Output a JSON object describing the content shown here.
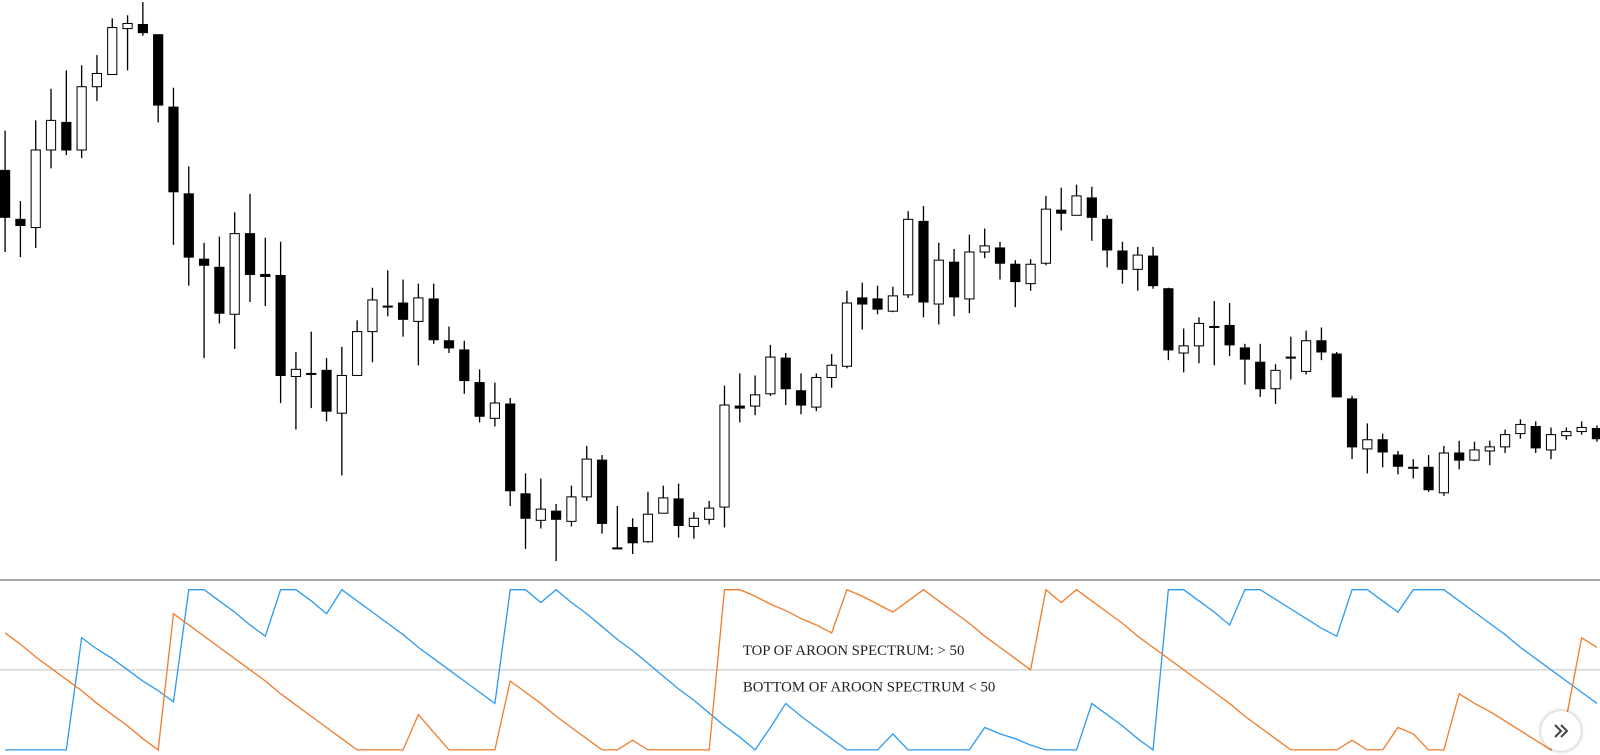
{
  "chart_data": [
    {
      "type": "candlestick",
      "up_color": "#ffffff",
      "down_color": "#000000",
      "ylim": [
        2,
        570
      ],
      "open": [
        403,
        355,
        347,
        423,
        450,
        423,
        485,
        497,
        542,
        546,
        536,
        465,
        380,
        316,
        308,
        262,
        341,
        301,
        300,
        201,
        204,
        207,
        165,
        202,
        245,
        270,
        273,
        255,
        277,
        236,
        227,
        195,
        160,
        174,
        86,
        60,
        69,
        59,
        83,
        119,
        33,
        53,
        39,
        67,
        81,
        54,
        61,
        73,
        172,
        172,
        184,
        219,
        187,
        171,
        200,
        211,
        278,
        277,
        265,
        281,
        353,
        272,
        313,
        277,
        323,
        327,
        311,
        292,
        312,
        364,
        359,
        376,
        355,
        324,
        306,
        319,
        287,
        224,
        231,
        250,
        251,
        229,
        215,
        189,
        220,
        206,
        236,
        223,
        179,
        130,
        139,
        124,
        112,
        112,
        87,
        126,
        119,
        128,
        132,
        145,
        152,
        129,
        143,
        147,
        150
      ],
      "high": [
        442,
        373,
        452,
        483,
        501,
        506,
        516,
        552,
        555,
        568,
        536,
        484,
        407,
        332,
        338,
        362,
        380,
        337,
        333,
        225,
        245,
        219,
        230,
        256,
        288,
        305,
        296,
        292,
        292,
        250,
        236,
        208,
        195,
        180,
        106,
        101,
        76,
        94,
        133,
        124,
        74,
        62,
        88,
        94,
        96,
        68,
        79,
        192,
        204,
        202,
        232,
        224,
        204,
        204,
        223,
        285,
        293,
        290,
        289,
        363,
        368,
        332,
        326,
        340,
        346,
        333,
        315,
        316,
        378,
        386,
        389,
        387,
        359,
        333,
        328,
        328,
        288,
        248,
        259,
        275,
        273,
        233,
        233,
        213,
        240,
        246,
        249,
        225,
        182,
        155,
        145,
        128,
        120,
        124,
        133,
        138,
        137,
        138,
        149,
        159,
        157,
        151,
        151,
        157,
        153
      ],
      "low": [
        323,
        318,
        327,
        405,
        418,
        415,
        471,
        497,
        501,
        535,
        450,
        330,
        290,
        219,
        253,
        228,
        274,
        270,
        175,
        149,
        170,
        157,
        104,
        202,
        215,
        260,
        240,
        212,
        233,
        224,
        184,
        156,
        152,
        74,
        32,
        52,
        20,
        54,
        79,
        47,
        32,
        27,
        38,
        67,
        43,
        42,
        56,
        53,
        156,
        163,
        182,
        173,
        164,
        167,
        190,
        209,
        247,
        262,
        264,
        278,
        259,
        252,
        260,
        263,
        317,
        296,
        269,
        285,
        310,
        344,
        359,
        334,
        308,
        292,
        285,
        287,
        217,
        205,
        214,
        212,
        221,
        193,
        181,
        174,
        198,
        203,
        217,
        181,
        120,
        106,
        112,
        105,
        101,
        88,
        84,
        110,
        118,
        114,
        126,
        140,
        126,
        120,
        139,
        144,
        137
      ],
      "close": [
        357,
        349,
        423,
        452,
        423,
        485,
        498,
        543,
        547,
        538,
        467,
        382,
        318,
        310,
        263,
        341,
        301,
        299,
        202,
        208,
        203,
        167,
        202,
        245,
        276,
        269,
        257,
        278,
        237,
        229,
        197,
        162,
        175,
        89,
        62,
        71,
        61,
        83,
        120,
        57,
        32,
        38,
        66,
        82,
        55,
        62,
        72,
        173,
        170,
        183,
        220,
        189,
        173,
        200,
        212,
        273,
        272,
        267,
        280,
        355,
        274,
        315,
        279,
        323,
        329,
        312,
        294,
        311,
        365,
        361,
        378,
        357,
        325,
        306,
        320,
        290,
        227,
        231,
        253,
        249,
        232,
        218,
        189,
        207,
        219,
        236,
        225,
        181,
        132,
        139,
        127,
        113,
        111,
        90,
        126,
        119,
        129,
        132,
        144,
        154,
        131,
        144,
        147,
        151,
        140
      ]
    },
    {
      "type": "line",
      "ylim": [
        0,
        100
      ],
      "reference_line": 50,
      "annotations": [
        "TOP OF AROON SPECTRUM: > 50",
        "BOTTOM OF AROON SPECTRUM < 50"
      ],
      "series": [
        {
          "color": "#2e9bf0",
          "values": [
            0,
            0,
            0,
            0,
            0,
            70,
            63,
            57,
            50,
            43,
            37,
            30,
            100,
            100,
            93,
            86,
            78,
            71,
            100,
            100,
            93,
            85,
            100,
            93,
            86,
            79,
            72,
            64,
            57,
            50,
            43,
            36,
            29,
            100,
            100,
            92,
            100,
            92,
            85,
            77,
            69,
            62,
            54,
            46,
            38,
            31,
            23,
            15,
            8,
            0,
            14,
            29,
            21,
            14,
            7,
            0,
            0,
            0,
            10,
            0,
            0,
            0,
            0,
            0,
            14,
            10,
            7,
            3,
            0,
            0,
            0,
            29,
            22,
            15,
            7,
            0,
            100,
            100,
            93,
            86,
            78,
            100,
            100,
            94,
            88,
            82,
            76,
            71,
            100,
            100,
            93,
            86,
            100,
            100,
            100,
            93,
            86,
            79,
            72,
            64,
            57,
            50,
            43,
            36,
            29
          ]
        },
        {
          "color": "#f07d2c",
          "values": [
            73,
            66,
            58,
            51,
            44,
            37,
            29,
            22,
            15,
            7,
            0,
            85,
            78,
            71,
            64,
            57,
            50,
            43,
            35,
            28,
            21,
            14,
            7,
            0,
            0,
            0,
            0,
            22,
            11,
            0,
            0,
            0,
            0,
            43,
            36,
            29,
            21,
            14,
            7,
            0,
            0,
            6,
            0,
            0,
            0,
            0,
            0,
            100,
            100,
            96,
            91,
            87,
            82,
            78,
            73,
            100,
            96,
            91,
            86,
            93,
            100,
            93,
            86,
            79,
            71,
            64,
            57,
            50,
            100,
            92,
            100,
            93,
            86,
            79,
            71,
            64,
            57,
            50,
            43,
            36,
            29,
            21,
            14,
            7,
            0,
            0,
            0,
            0,
            6,
            0,
            0,
            14,
            10,
            0,
            0,
            35,
            29,
            24,
            18,
            12,
            6,
            0,
            20,
            70,
            64
          ]
        }
      ]
    }
  ]
}
